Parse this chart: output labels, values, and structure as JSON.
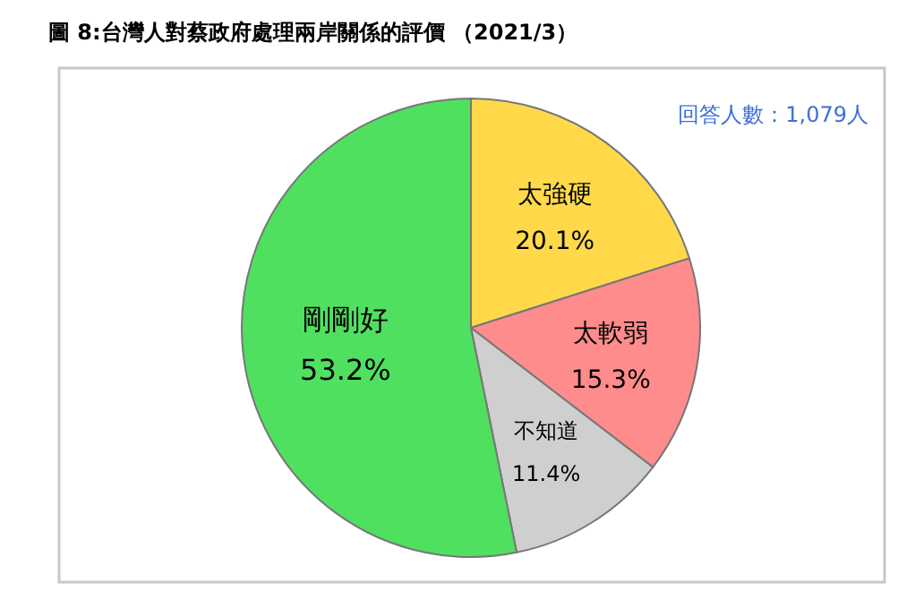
{
  "chart_data": {
    "type": "pie",
    "title": "圖 8:台灣人對蔡政府處理兩岸關係的評價 （2021/3）",
    "annotations": [
      "回答人數：1,079人"
    ],
    "categories": [
      "太強硬",
      "太軟弱",
      "不知道",
      "剛剛好"
    ],
    "values": [
      20.1,
      15.3,
      11.4,
      53.2
    ],
    "colors": [
      "#ffd94a",
      "#ff8c8c",
      "#cfcfcf",
      "#4fe060"
    ],
    "value_labels": [
      "20.1%",
      "15.3%",
      "11.4%",
      "53.2%"
    ]
  }
}
